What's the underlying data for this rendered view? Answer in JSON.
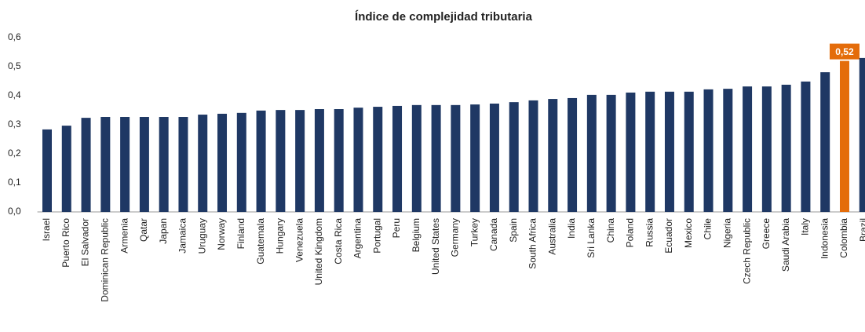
{
  "chart_data": {
    "type": "bar",
    "title": "Índice de complejidad tributaria",
    "categories": [
      "Israel",
      "Puerto Rico",
      "El Salvador",
      "Dominican Republic",
      "Armenia",
      "Qatar",
      "Japan",
      "Jamaica",
      "Uruguay",
      "Norway",
      "Finland",
      "Guatemala",
      "Hungary",
      "Venezuela",
      "United Kingdom",
      "Costa Rica",
      "Argentina",
      "Portugal",
      "Peru",
      "Belgium",
      "United States",
      "Germany",
      "Turkey",
      "Canada",
      "Spain",
      "South Africa",
      "Australia",
      "India",
      "Sri Lanka",
      "China",
      "Poland",
      "Russia",
      "Ecuador",
      "Mexico",
      "Chile",
      "Nigeria",
      "Czech Republic",
      "Greece",
      "Saudi Arabia",
      "Italy",
      "Indonesia",
      "Colombia",
      "Brazil"
    ],
    "values": [
      0.284,
      0.297,
      0.324,
      0.327,
      0.327,
      0.327,
      0.327,
      0.327,
      0.335,
      0.338,
      0.341,
      0.349,
      0.351,
      0.351,
      0.354,
      0.354,
      0.359,
      0.362,
      0.365,
      0.368,
      0.368,
      0.368,
      0.37,
      0.373,
      0.378,
      0.384,
      0.389,
      0.392,
      0.403,
      0.403,
      0.411,
      0.414,
      0.414,
      0.414,
      0.422,
      0.424,
      0.432,
      0.432,
      0.438,
      0.449,
      0.481,
      0.52,
      0.53
    ],
    "value_labels": [
      null,
      null,
      null,
      null,
      null,
      null,
      null,
      null,
      null,
      null,
      null,
      null,
      null,
      null,
      null,
      null,
      null,
      null,
      null,
      null,
      null,
      null,
      null,
      null,
      null,
      null,
      null,
      null,
      null,
      null,
      null,
      null,
      null,
      null,
      null,
      null,
      null,
      null,
      null,
      null,
      null,
      "0,52",
      null
    ],
    "colors": [
      "#1f3864",
      "#1f3864",
      "#1f3864",
      "#1f3864",
      "#1f3864",
      "#1f3864",
      "#1f3864",
      "#1f3864",
      "#1f3864",
      "#1f3864",
      "#1f3864",
      "#1f3864",
      "#1f3864",
      "#1f3864",
      "#1f3864",
      "#1f3864",
      "#1f3864",
      "#1f3864",
      "#1f3864",
      "#1f3864",
      "#1f3864",
      "#1f3864",
      "#1f3864",
      "#1f3864",
      "#1f3864",
      "#1f3864",
      "#1f3864",
      "#1f3864",
      "#1f3864",
      "#1f3864",
      "#1f3864",
      "#1f3864",
      "#1f3864",
      "#1f3864",
      "#1f3864",
      "#1f3864",
      "#1f3864",
      "#1f3864",
      "#1f3864",
      "#1f3864",
      "#1f3864",
      "#e46c0a",
      "#1f3864"
    ],
    "ylim": [
      0,
      0.6
    ],
    "yticks": [
      {
        "value": 0,
        "label": "0,0"
      },
      {
        "value": 0.1,
        "label": "0,1"
      },
      {
        "value": 0.2,
        "label": "0,2"
      },
      {
        "value": 0.3,
        "label": "0,3"
      },
      {
        "value": 0.4,
        "label": "0,4"
      },
      {
        "value": 0.5,
        "label": "0,5"
      },
      {
        "value": 0.6,
        "label": "0,6"
      }
    ],
    "grid": false
  }
}
